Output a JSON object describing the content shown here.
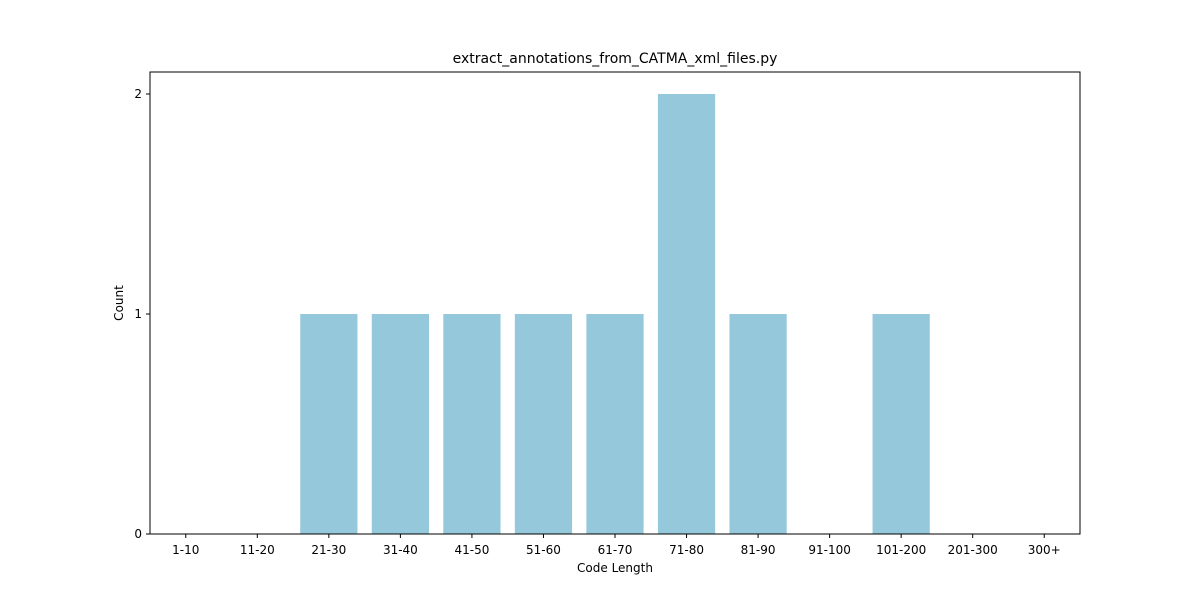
{
  "chart_data": {
    "type": "bar",
    "title": "extract_annotations_from_CATMA_xml_files.py",
    "xlabel": "Code Length",
    "ylabel": "Count",
    "categories": [
      "1-10",
      "11-20",
      "21-30",
      "31-40",
      "41-50",
      "51-60",
      "61-70",
      "71-80",
      "81-90",
      "91-100",
      "101-200",
      "201-300",
      "300+"
    ],
    "values": [
      0,
      0,
      1,
      1,
      1,
      1,
      1,
      2,
      1,
      0,
      1,
      0,
      0
    ],
    "yticks": [
      0,
      1,
      2
    ],
    "ylim": [
      0,
      2.1
    ],
    "grid": false,
    "legend": "none",
    "bar_color": "#96c8dc"
  }
}
